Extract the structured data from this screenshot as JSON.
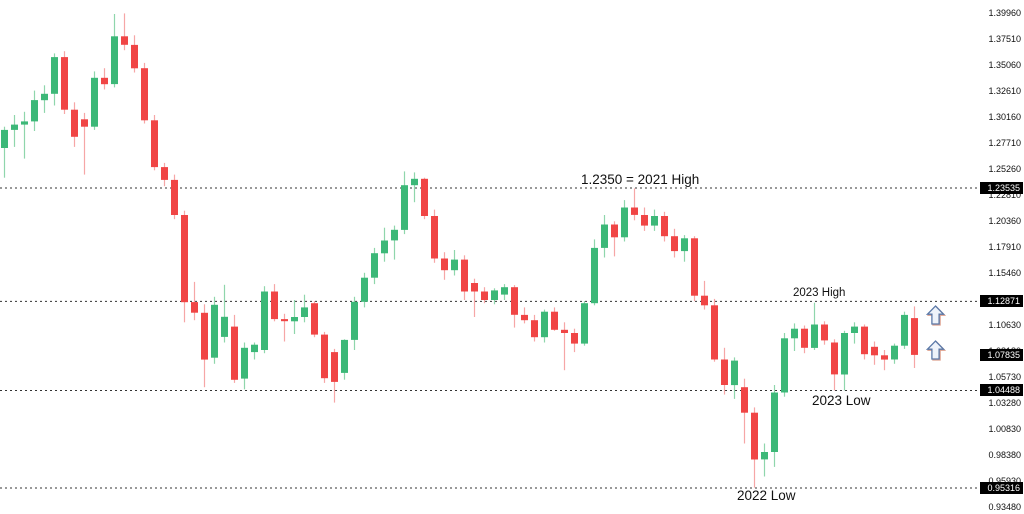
{
  "annotations": {
    "high_2021": "1.2350 = 2021 High",
    "high_2023": "2023 High",
    "low_2023": "2023 Low",
    "low_2022": "2022 Low"
  },
  "price_axis": {
    "ticks": [
      {
        "label": "1.39960",
        "value": 1.3996
      },
      {
        "label": "1.37510",
        "value": 1.3751
      },
      {
        "label": "1.35060",
        "value": 1.3506
      },
      {
        "label": "1.32610",
        "value": 1.3261
      },
      {
        "label": "1.30160",
        "value": 1.3016
      },
      {
        "label": "1.27710",
        "value": 1.2771
      },
      {
        "label": "1.25260",
        "value": 1.2526
      },
      {
        "label": "1.22810",
        "value": 1.2281
      },
      {
        "label": "1.20360",
        "value": 1.2036
      },
      {
        "label": "1.17910",
        "value": 1.1791
      },
      {
        "label": "1.15460",
        "value": 1.1546
      },
      {
        "label": "1.10630",
        "value": 1.1063
      },
      {
        "label": "1.08180",
        "value": 1.0818
      },
      {
        "label": "1.05730",
        "value": 1.0573
      },
      {
        "label": "1.03280",
        "value": 1.0328
      },
      {
        "label": "1.00830",
        "value": 1.0083
      },
      {
        "label": "0.98380",
        "value": 0.9838
      },
      {
        "label": "0.95930",
        "value": 0.9593
      },
      {
        "label": "0.93480",
        "value": 0.9348
      }
    ],
    "highlighted_labels": [
      {
        "label": "1.23535",
        "value": 1.23535
      },
      {
        "label": "1.12871",
        "value": 1.12871
      },
      {
        "label": "1.07835",
        "value": 1.07835
      },
      {
        "label": "1.04488",
        "value": 1.04488
      },
      {
        "label": "0.95316",
        "value": 0.95316
      }
    ]
  },
  "chart_data": {
    "type": "candlestick",
    "title": "",
    "ylabel": "",
    "ylim": [
      0.9348,
      1.412
    ],
    "grid": false,
    "legend": "none",
    "up_color": "#3cb878",
    "down_color": "#f04545",
    "up_wick_color": "#8fd6ac",
    "down_wick_color": "#f6a6a6",
    "current_price": 1.07835,
    "key_levels": [
      {
        "price": 1.23535,
        "label": "1.2350 = 2021 High",
        "style": "dashed"
      },
      {
        "price": 1.12871,
        "label": "2023 High",
        "style": "dashed"
      },
      {
        "price": 1.04488,
        "label": "2023 Low",
        "style": "dashed"
      },
      {
        "price": 0.95316,
        "label": "2022 Low",
        "style": "dashed"
      }
    ],
    "candles_format": [
      "open",
      "high",
      "low",
      "close"
    ],
    "candles": [
      [
        1.273,
        1.293,
        1.245,
        1.29
      ],
      [
        1.29,
        1.304,
        1.274,
        1.295
      ],
      [
        1.295,
        1.307,
        1.263,
        1.298
      ],
      [
        1.298,
        1.327,
        1.289,
        1.318
      ],
      [
        1.318,
        1.332,
        1.306,
        1.324
      ],
      [
        1.324,
        1.362,
        1.313,
        1.3585
      ],
      [
        1.3585,
        1.364,
        1.305,
        1.309
      ],
      [
        1.309,
        1.316,
        1.274,
        1.2835
      ],
      [
        1.3,
        1.306,
        1.248,
        1.293
      ],
      [
        1.293,
        1.345,
        1.29,
        1.339
      ],
      [
        1.339,
        1.348,
        1.328,
        1.333
      ],
      [
        1.333,
        1.399,
        1.33,
        1.378
      ],
      [
        1.378,
        1.3996,
        1.365,
        1.37
      ],
      [
        1.37,
        1.379,
        1.344,
        1.348
      ],
      [
        1.348,
        1.353,
        1.296,
        1.299
      ],
      [
        1.299,
        1.304,
        1.252,
        1.255
      ],
      [
        1.255,
        1.259,
        1.237,
        1.243
      ],
      [
        1.243,
        1.248,
        1.206,
        1.21
      ],
      [
        1.21,
        1.214,
        1.109,
        1.128
      ],
      [
        1.128,
        1.147,
        1.111,
        1.118
      ],
      [
        1.118,
        1.126,
        1.048,
        1.074
      ],
      [
        1.0757,
        1.133,
        1.07,
        1.1255
      ],
      [
        1.0953,
        1.1443,
        1.09,
        1.1142
      ],
      [
        1.105,
        1.116,
        1.052,
        1.055
      ],
      [
        1.056,
        1.09,
        1.046,
        1.085
      ],
      [
        1.081,
        1.09,
        1.074,
        1.088
      ],
      [
        1.083,
        1.143,
        1.08,
        1.138
      ],
      [
        1.138,
        1.145,
        1.11,
        1.112
      ],
      [
        1.112,
        1.117,
        1.091,
        1.11
      ],
      [
        1.11,
        1.13,
        1.098,
        1.114
      ],
      [
        1.114,
        1.135,
        1.109,
        1.123
      ],
      [
        1.127,
        1.129,
        1.095,
        1.0975
      ],
      [
        1.0975,
        1.1,
        1.052,
        1.0565
      ],
      [
        1.081,
        1.084,
        1.0335,
        1.053
      ],
      [
        1.0615,
        1.093,
        1.055,
        1.0925
      ],
      [
        1.0925,
        1.133,
        1.083,
        1.1283
      ],
      [
        1.1283,
        1.1556,
        1.123,
        1.151
      ],
      [
        1.151,
        1.179,
        1.145,
        1.174
      ],
      [
        1.174,
        1.198,
        1.166,
        1.186
      ],
      [
        1.186,
        1.2,
        1.168,
        1.196
      ],
      [
        1.196,
        1.251,
        1.192,
        1.238
      ],
      [
        1.238,
        1.25,
        1.222,
        1.244
      ],
      [
        1.244,
        1.245,
        1.206,
        1.209
      ],
      [
        1.209,
        1.215,
        1.165,
        1.169
      ],
      [
        1.169,
        1.175,
        1.149,
        1.158
      ],
      [
        1.158,
        1.177,
        1.153,
        1.168
      ],
      [
        1.168,
        1.172,
        1.13,
        1.138
      ],
      [
        1.146,
        1.15,
        1.114,
        1.138
      ],
      [
        1.138,
        1.142,
        1.127,
        1.13
      ],
      [
        1.13,
        1.141,
        1.126,
        1.139
      ],
      [
        1.135,
        1.145,
        1.13,
        1.142
      ],
      [
        1.142,
        1.144,
        1.104,
        1.116
      ],
      [
        1.116,
        1.123,
        1.108,
        1.111
      ],
      [
        1.111,
        1.116,
        1.091,
        1.095
      ],
      [
        1.095,
        1.121,
        1.09,
        1.119
      ],
      [
        1.119,
        1.123,
        1.101,
        1.102
      ],
      [
        1.102,
        1.109,
        1.064,
        1.099
      ],
      [
        1.099,
        1.103,
        1.081,
        1.089
      ],
      [
        1.089,
        1.129,
        1.087,
        1.127
      ],
      [
        1.127,
        1.187,
        1.125,
        1.179
      ],
      [
        1.179,
        1.21,
        1.17,
        1.201
      ],
      [
        1.201,
        1.204,
        1.171,
        1.189
      ],
      [
        1.189,
        1.224,
        1.185,
        1.217
      ],
      [
        1.217,
        1.235,
        1.205,
        1.21
      ],
      [
        1.21,
        1.217,
        1.195,
        1.2
      ],
      [
        1.2,
        1.215,
        1.195,
        1.209
      ],
      [
        1.209,
        1.213,
        1.185,
        1.19
      ],
      [
        1.19,
        1.197,
        1.17,
        1.176
      ],
      [
        1.176,
        1.191,
        1.166,
        1.188
      ],
      [
        1.188,
        1.19,
        1.129,
        1.134
      ],
      [
        1.134,
        1.148,
        1.121,
        1.125
      ],
      [
        1.125,
        1.131,
        1.072,
        1.074
      ],
      [
        1.074,
        1.085,
        1.041,
        1.05
      ],
      [
        1.05,
        1.076,
        1.037,
        1.073
      ],
      [
        1.048,
        1.056,
        0.995,
        1.024
      ],
      [
        1.024,
        1.029,
        0.9535,
        0.98
      ],
      [
        0.98,
        0.995,
        0.964,
        0.987
      ],
      [
        0.987,
        1.05,
        0.973,
        1.043
      ],
      [
        1.043,
        1.099,
        1.039,
        1.094
      ],
      [
        1.094,
        1.108,
        1.082,
        1.103
      ],
      [
        1.103,
        1.106,
        1.08,
        1.085
      ],
      [
        1.085,
        1.1275,
        1.083,
        1.107
      ],
      [
        1.107,
        1.11,
        1.088,
        1.092
      ],
      [
        1.09,
        1.093,
        1.045,
        1.06
      ],
      [
        1.06,
        1.101,
        1.045,
        1.099
      ],
      [
        1.099,
        1.109,
        1.089,
        1.105
      ],
      [
        1.105,
        1.107,
        1.074,
        1.079
      ],
      [
        1.086,
        1.091,
        1.069,
        1.078
      ],
      [
        1.078,
        1.083,
        1.064,
        1.074
      ],
      [
        1.074,
        1.089,
        1.07,
        1.087
      ],
      [
        1.087,
        1.119,
        1.084,
        1.116
      ],
      [
        1.113,
        1.124,
        1.066,
        1.0784
      ]
    ]
  },
  "markers": {
    "up_arrow_1": "up-arrow",
    "up_arrow_2": "up-arrow"
  }
}
